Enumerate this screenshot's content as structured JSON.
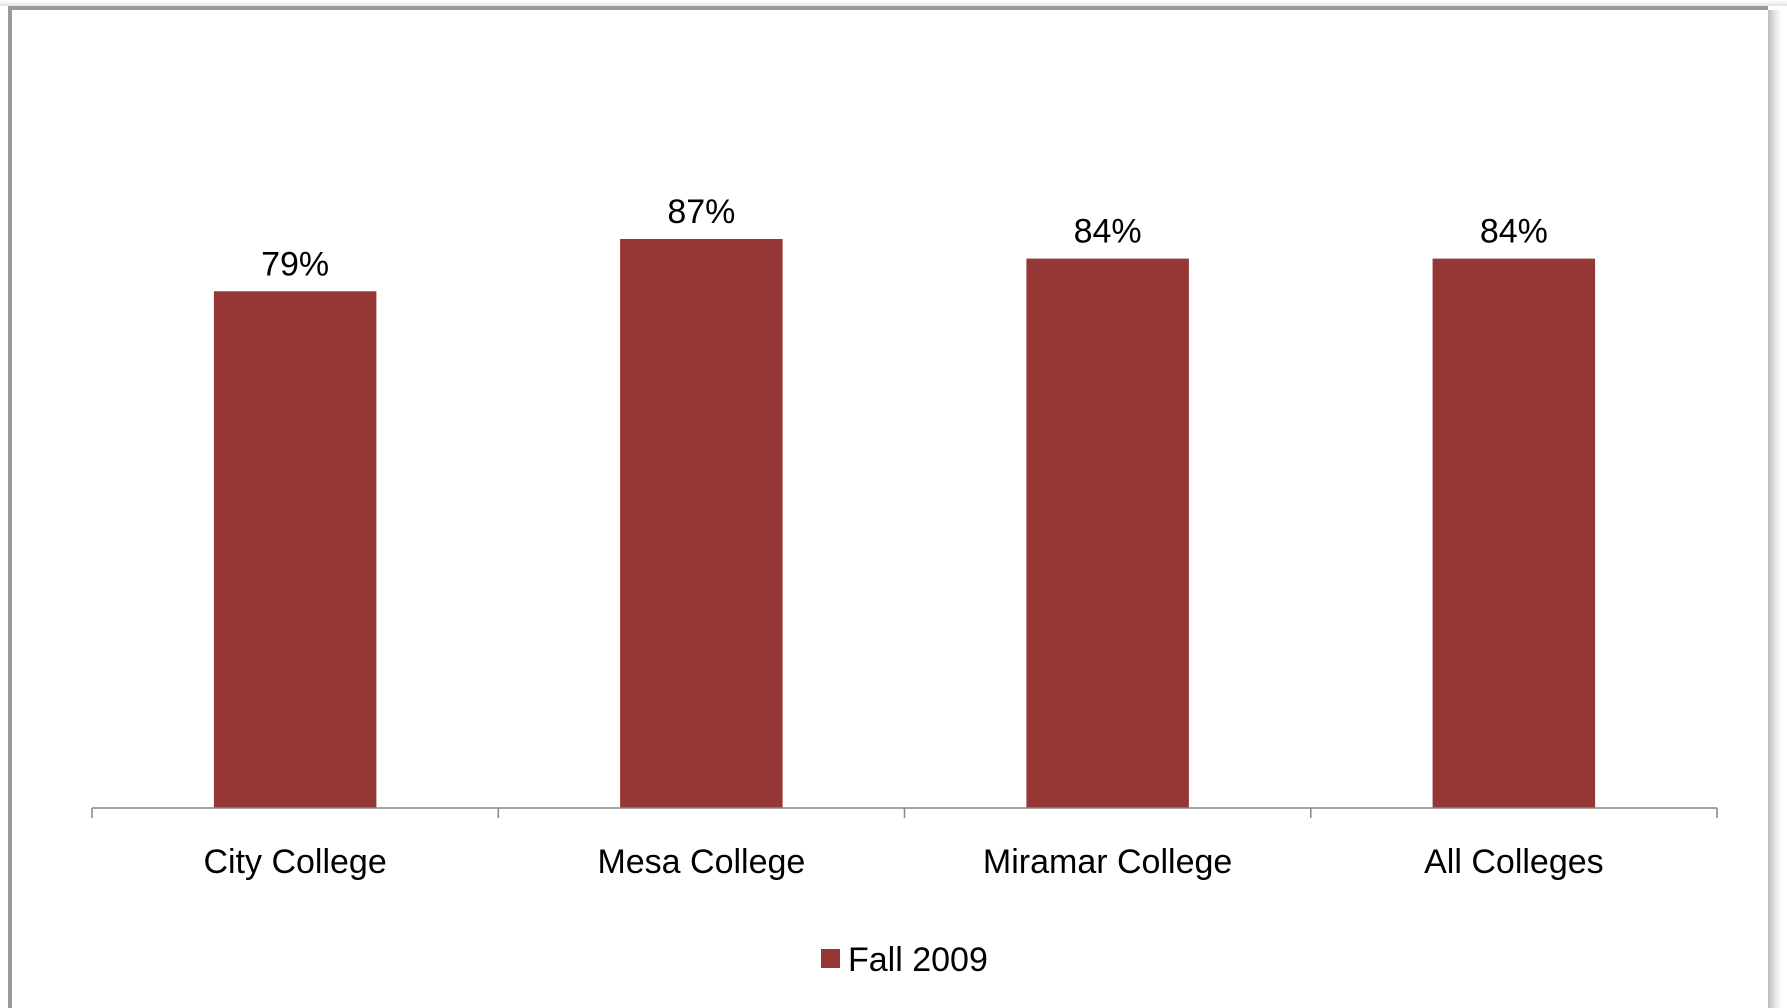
{
  "chart_data": {
    "type": "bar",
    "categories": [
      "City College",
      "Mesa College",
      "Miramar College",
      "All Colleges"
    ],
    "series": [
      {
        "name": "Fall 2009",
        "values": [
          79,
          87,
          84,
          84
        ],
        "labels": [
          "79%",
          "87%",
          "84%",
          "84%"
        ],
        "color": "#953735"
      }
    ],
    "title": "",
    "xlabel": "",
    "ylabel": "",
    "ylim": [
      0,
      100
    ],
    "grid": false,
    "y_axis_visible": false,
    "legend": {
      "position": "bottom",
      "entries": [
        "Fall 2009"
      ]
    }
  }
}
